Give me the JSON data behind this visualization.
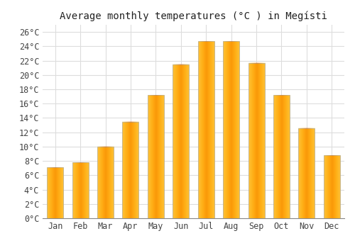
{
  "title": "Average monthly temperatures (°C ) in Megísti",
  "months": [
    "Jan",
    "Feb",
    "Mar",
    "Apr",
    "May",
    "Jun",
    "Jul",
    "Aug",
    "Sep",
    "Oct",
    "Nov",
    "Dec"
  ],
  "values": [
    7.1,
    7.8,
    10.0,
    13.5,
    17.2,
    21.5,
    24.7,
    24.7,
    21.7,
    17.2,
    12.6,
    8.8
  ],
  "bar_color": "#FFAA00",
  "bar_edge_color": "#888888",
  "ylim": [
    0,
    27
  ],
  "ytick_step": 2,
  "background_color": "#ffffff",
  "grid_color": "#dddddd",
  "font_family": "monospace",
  "title_fontsize": 10,
  "tick_fontsize": 8.5,
  "fig_width": 5.0,
  "fig_height": 3.5,
  "dpi": 100
}
